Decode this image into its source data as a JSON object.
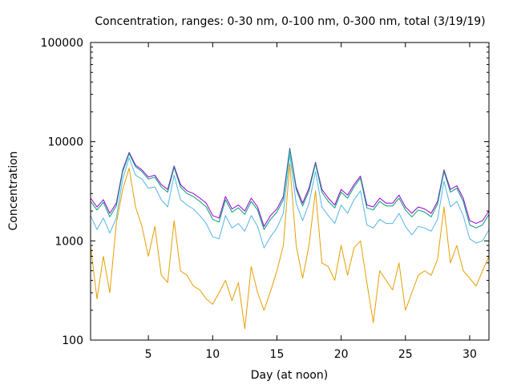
{
  "chart_data": {
    "type": "line",
    "title": "Concentration, ranges: 0-30 nm, 0-100 nm, 0-300 nm, total (3/19/19)",
    "xlabel": "Day (at noon)",
    "ylabel": "Concentration",
    "xlim": [
      0.5,
      31.5
    ],
    "ylim": [
      100,
      100000
    ],
    "yscale": "log",
    "grid": false,
    "legend": "none",
    "x_ticks": [
      5,
      10,
      15,
      20,
      25,
      30
    ],
    "y_ticks": [
      100,
      1000,
      10000,
      100000
    ],
    "x_tick_labels": [
      "5",
      "10",
      "15",
      "20",
      "25",
      "30"
    ],
    "y_tick_labels": [
      "100",
      "1000",
      "10000",
      "100000"
    ],
    "series": [
      {
        "color": "#9400d3",
        "x": [
          0.5,
          1,
          1.5,
          2,
          2.5,
          3,
          3.5,
          4,
          4.5,
          5,
          5.5,
          6,
          6.5,
          7,
          7.5,
          8,
          8.5,
          9,
          9.5,
          10,
          10.5,
          11,
          11.5,
          12,
          12.5,
          13,
          13.5,
          14,
          14.5,
          15,
          15.5,
          16,
          16.5,
          17,
          17.5,
          18,
          18.5,
          19,
          19.5,
          20,
          20.5,
          21,
          21.5,
          22,
          22.5,
          23,
          23.5,
          24,
          24.5,
          25,
          25.5,
          26,
          26.5,
          27,
          27.5,
          28,
          28.5,
          29,
          29.5,
          30,
          30.5,
          31,
          31.5
        ],
        "y": [
          2700,
          2200,
          2600,
          1900,
          2400,
          5200,
          7800,
          5800,
          5200,
          4400,
          4600,
          3700,
          3300,
          5700,
          3700,
          3200,
          3000,
          2700,
          2400,
          1800,
          1700,
          2800,
          2100,
          2300,
          2000,
          2700,
          2200,
          1400,
          1800,
          2100,
          2800,
          8600,
          3500,
          2400,
          3400,
          6200,
          3300,
          2700,
          2300,
          3300,
          2900,
          3700,
          4500,
          2300,
          2200,
          2700,
          2400,
          2400,
          2900,
          2200,
          1900,
          2200,
          2100,
          1900,
          2500,
          5200,
          3300,
          3600,
          2700,
          1600,
          1500,
          1600,
          2000
        ]
      },
      {
        "color": "#009e73",
        "x": [
          0.5,
          1,
          1.5,
          2,
          2.5,
          3,
          3.5,
          4,
          4.5,
          5,
          5.5,
          6,
          6.5,
          7,
          7.5,
          8,
          8.5,
          9,
          9.5,
          10,
          10.5,
          11,
          11.5,
          12,
          12.5,
          13,
          13.5,
          14,
          14.5,
          15,
          15.5,
          16,
          16.5,
          17,
          17.5,
          18,
          18.5,
          19,
          19.5,
          20,
          20.5,
          21,
          21.5,
          22,
          22.5,
          23,
          23.5,
          24,
          24.5,
          25,
          25.5,
          26,
          26.5,
          27,
          27.5,
          28,
          28.5,
          29,
          29.5,
          30,
          30.5,
          31,
          31.5
        ],
        "y": [
          2500,
          2050,
          2450,
          1750,
          2250,
          5000,
          7600,
          5600,
          5000,
          4200,
          4400,
          3500,
          3100,
          5500,
          3500,
          3000,
          2800,
          2500,
          2200,
          1650,
          1550,
          2600,
          1950,
          2150,
          1850,
          2500,
          2050,
          1300,
          1650,
          1950,
          2600,
          8400,
          3300,
          2250,
          3200,
          6000,
          3100,
          2500,
          2150,
          3100,
          2700,
          3500,
          4300,
          2150,
          2050,
          2500,
          2250,
          2250,
          2700,
          2050,
          1750,
          2050,
          1950,
          1750,
          2350,
          5000,
          3100,
          3400,
          2500,
          1450,
          1350,
          1450,
          1850
        ]
      },
      {
        "color": "#56b4e9",
        "x": [
          0.5,
          1,
          1.5,
          2,
          2.5,
          3,
          3.5,
          4,
          4.5,
          5,
          5.5,
          6,
          6.5,
          7,
          7.5,
          8,
          8.5,
          9,
          9.5,
          10,
          10.5,
          11,
          11.5,
          12,
          12.5,
          13,
          13.5,
          14,
          14.5,
          15,
          15.5,
          16,
          16.5,
          17,
          17.5,
          18,
          18.5,
          19,
          19.5,
          20,
          20.5,
          21,
          21.5,
          22,
          22.5,
          23,
          23.5,
          24,
          24.5,
          25,
          25.5,
          26,
          26.5,
          27,
          27.5,
          28,
          28.5,
          29,
          29.5,
          30,
          30.5,
          31,
          31.5
        ],
        "y": [
          1800,
          1300,
          1700,
          1200,
          1700,
          4200,
          6900,
          4600,
          4200,
          3400,
          3500,
          2600,
          2200,
          4600,
          2600,
          2300,
          2100,
          1800,
          1500,
          1100,
          1050,
          1800,
          1350,
          1500,
          1250,
          1800,
          1400,
          850,
          1100,
          1350,
          1900,
          7400,
          2400,
          1600,
          2400,
          5000,
          2200,
          1800,
          1500,
          2300,
          1900,
          2600,
          3200,
          1450,
          1350,
          1650,
          1500,
          1500,
          1900,
          1400,
          1150,
          1400,
          1350,
          1250,
          1650,
          4000,
          2200,
          2500,
          1800,
          1050,
          950,
          1000,
          1300
        ]
      },
      {
        "color": "#e69f00",
        "x": [
          0.5,
          1,
          1.5,
          2,
          2.5,
          3,
          3.5,
          4,
          4.5,
          5,
          5.5,
          6,
          6.5,
          7,
          7.5,
          8,
          8.5,
          9,
          9.5,
          10,
          10.5,
          11,
          11.5,
          12,
          12.5,
          13,
          13.5,
          14,
          14.5,
          15,
          15.5,
          16,
          16.5,
          17,
          17.5,
          18,
          18.5,
          19,
          19.5,
          20,
          20.5,
          21,
          21.5,
          22,
          22.5,
          23,
          23.5,
          24,
          24.5,
          25,
          25.5,
          26,
          26.5,
          27,
          27.5,
          28,
          28.5,
          29,
          29.5,
          30,
          30.5,
          31,
          31.5
        ],
        "y": [
          900,
          260,
          700,
          300,
          1500,
          3300,
          5400,
          2200,
          1400,
          700,
          1400,
          450,
          380,
          1600,
          500,
          450,
          350,
          320,
          260,
          230,
          300,
          400,
          250,
          380,
          130,
          550,
          300,
          200,
          310,
          500,
          900,
          6000,
          900,
          420,
          900,
          3200,
          600,
          550,
          400,
          900,
          450,
          850,
          1000,
          380,
          150,
          500,
          400,
          320,
          600,
          200,
          300,
          450,
          500,
          450,
          650,
          2200,
          600,
          900,
          500,
          420,
          350,
          500,
          700
        ]
      }
    ]
  }
}
